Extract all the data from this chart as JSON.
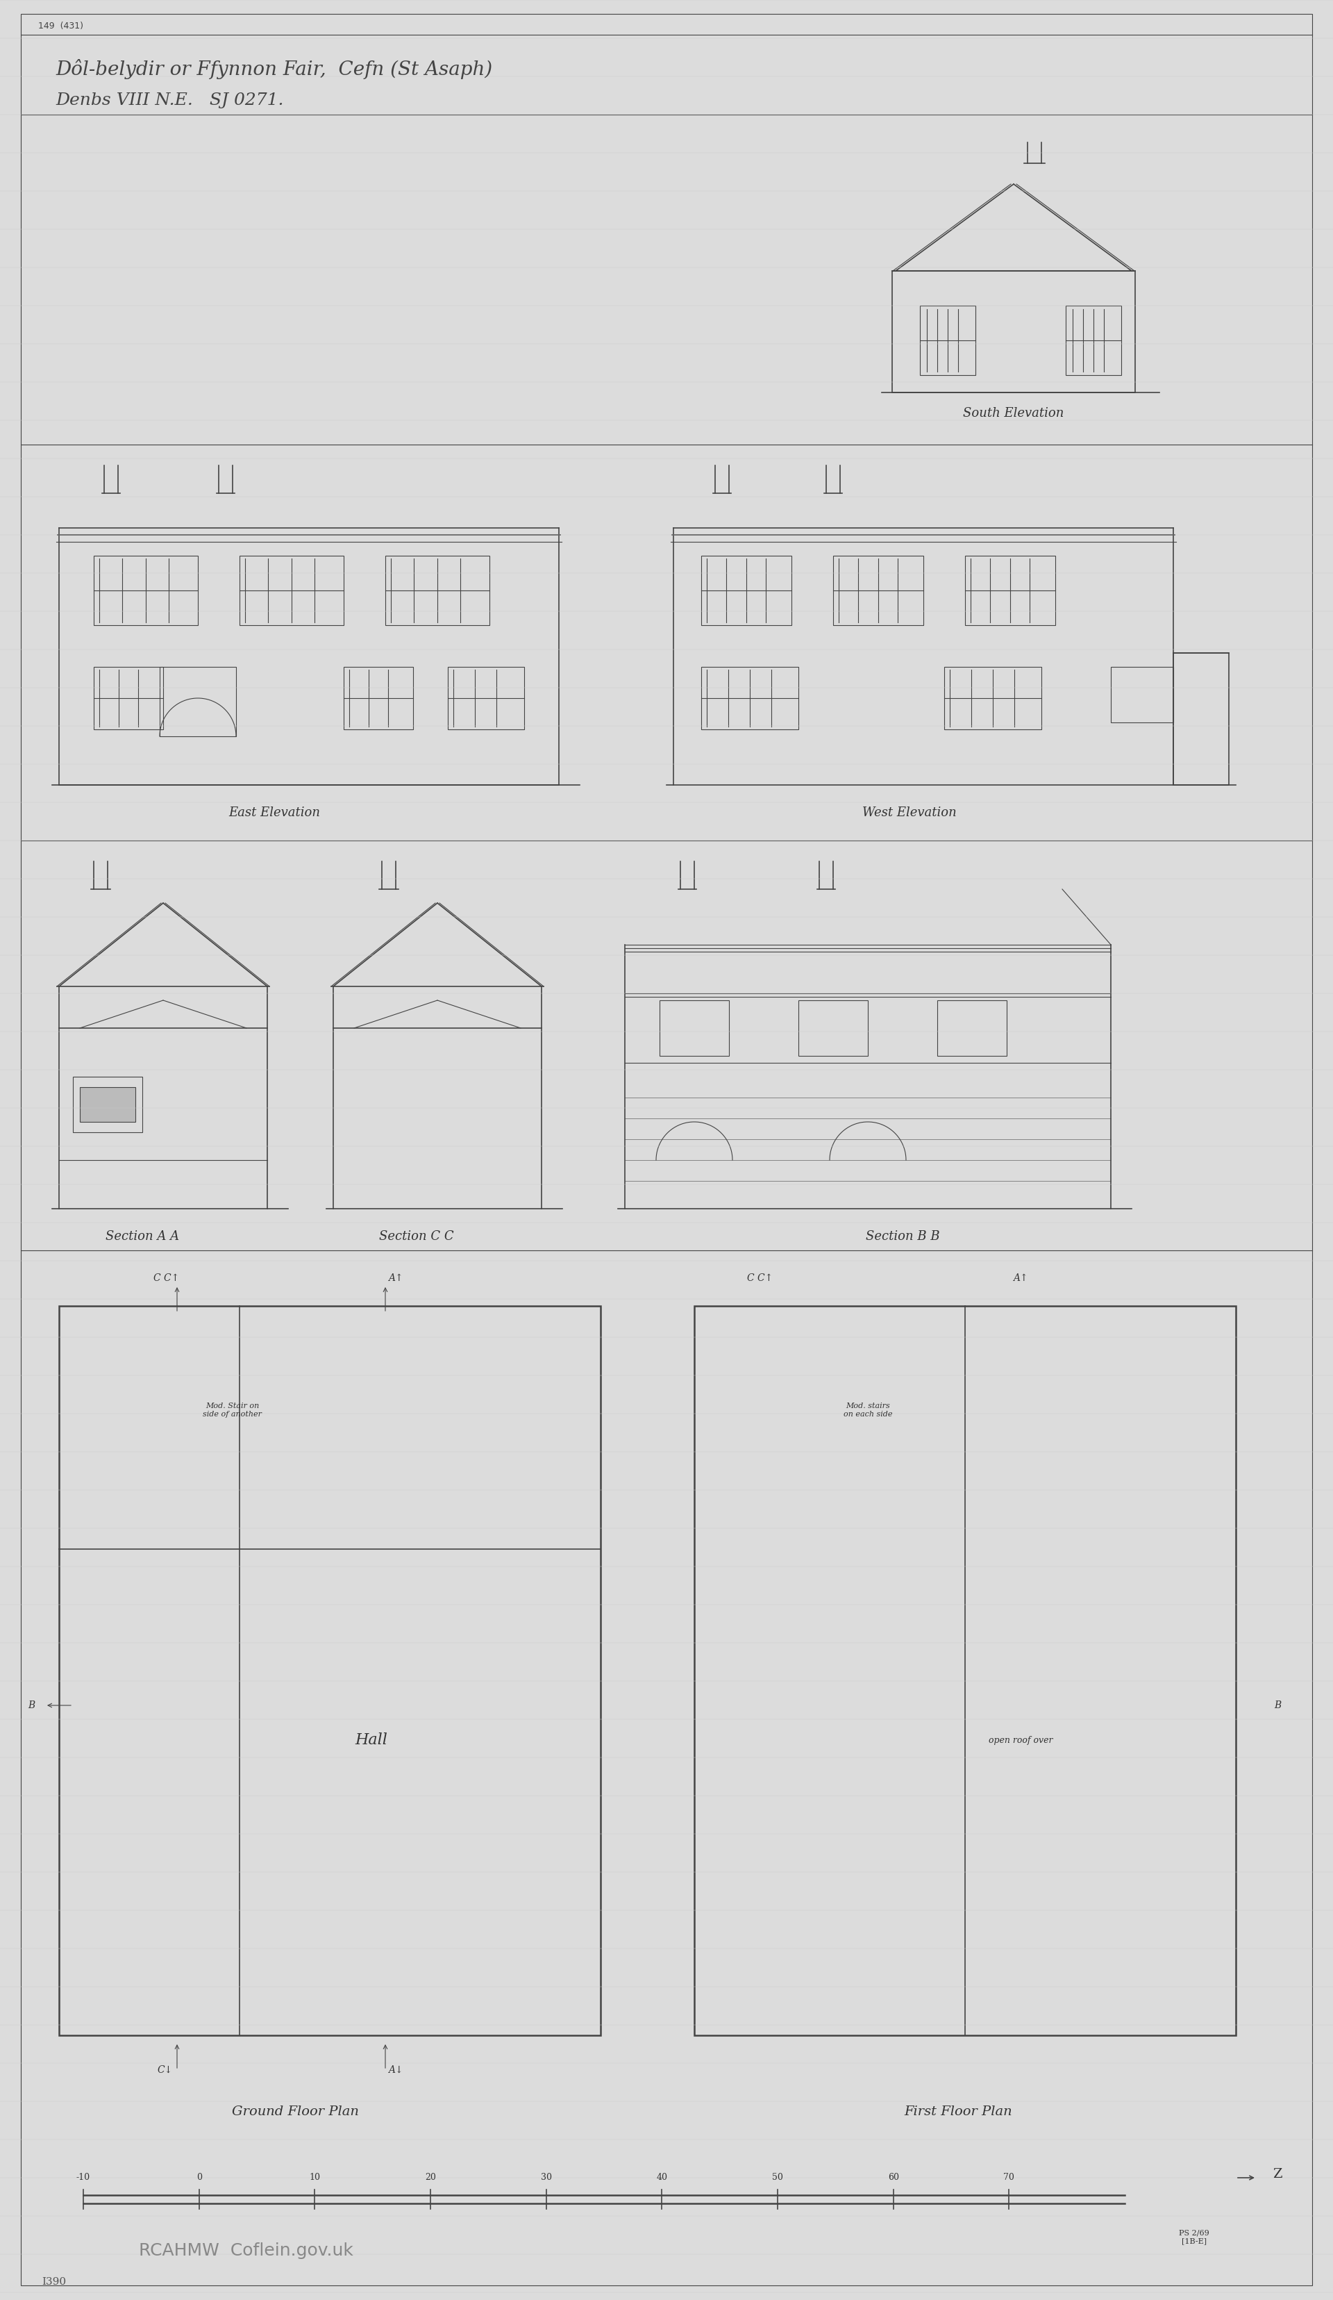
{
  "background_color": "#e8e8e8",
  "paper_color": "#dcdcdc",
  "line_color": "#444444",
  "title_line1": "Dôl-belydir or Ffynnon Fair,  Cefn (St Asaph)",
  "title_line2": "Denbs VIII N.E.   SJ 0271.",
  "ref_top_left": "149  (431)",
  "label_south_elev": "South Elevation",
  "label_east_elev": "East Elevation",
  "label_west_elev": "West Elevation",
  "label_section_aa": "Section A A",
  "label_section_cc": "Section C C",
  "label_section_bb": "Section B B",
  "label_ground_floor": "Ground Floor Plan",
  "label_first_floor": "First Floor Plan",
  "label_hall": "Hall",
  "label_rcahmw": "RCAHMW  Coflein.gov.uk",
  "label_ref_bottom": "I390",
  "scale_numbers": [
    "-10",
    "0",
    "10",
    "20",
    "30",
    "40",
    "50",
    "60",
    "70"
  ],
  "north_arrow_label": "Z",
  "ps_ref": "PS 2/69\n[1B-E]"
}
